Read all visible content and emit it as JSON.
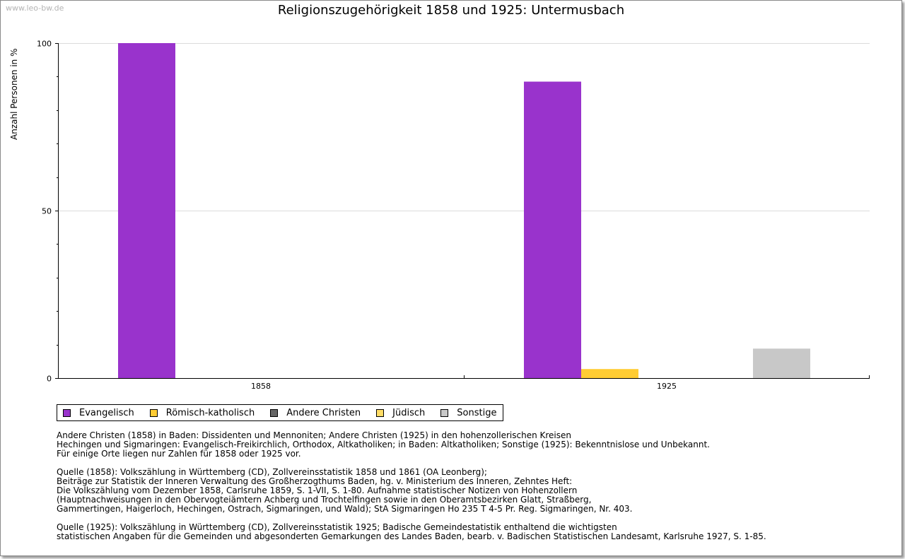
{
  "watermark": "www.leo-bw.de",
  "chart_data": {
    "type": "bar",
    "title": "Religionszugehörigkeit 1858 und 1925: Untermusbach",
    "xlabel": "",
    "ylabel": "Anzahl Personen in %",
    "ylim": [
      0,
      100
    ],
    "yticks": [
      0,
      50,
      100
    ],
    "grid": true,
    "categories": [
      "1858",
      "1925"
    ],
    "series": [
      {
        "name": "Evangelisch",
        "color": "#9933cc",
        "values": [
          100,
          88.5
        ]
      },
      {
        "name": "Römisch-katholisch",
        "color": "#ffcc33",
        "values": [
          0,
          2.7
        ]
      },
      {
        "name": "Andere Christen",
        "color": "#666666",
        "values": [
          0,
          0
        ]
      },
      {
        "name": "Jüdisch",
        "color": "#ffdd66",
        "values": [
          0,
          0
        ]
      },
      {
        "name": "Sonstige",
        "color": "#c8c8c8",
        "values": [
          0,
          8.8
        ]
      }
    ]
  },
  "notes": [
    "Andere Christen (1858) in Baden: Dissidenten und Mennoniten; Andere Christen (1925) in den hohenzollerischen Kreisen\nHechingen und Sigmaringen: Evangelisch-Freikirchlich, Orthodox, Altkatholiken; in Baden: Altkatholiken; Sonstige (1925): Bekenntnislose und Unbekannt.\nFür einige Orte liegen nur Zahlen für 1858 oder 1925 vor.",
    "Quelle (1858): Volkszählung in Württemberg (CD), Zollvereinsstatistik 1858 und 1861 (OA Leonberg);\nBeiträge zur Statistik der Inneren Verwaltung des Großherzogthums Baden, hg. v. Ministerium des Inneren, Zehntes Heft:\nDie Volkszählung vom Dezember 1858, Carlsruhe 1859, S. 1-VII, S. 1-80. Aufnahme statistischer Notizen von Hohenzollern\n(Hauptnachweisungen in den Obervogteiämtern Achberg und Trochtelfingen sowie in den Oberamtsbezirken Glatt, Straßberg,\nGammertingen, Haigerloch, Hechingen, Ostrach, Sigmaringen, und Wald); StA Sigmaringen Ho 235 T 4-5 Pr. Reg. Sigmaringen, Nr. 403.",
    "Quelle (1925): Volkszählung in Württemberg (CD), Zollvereinsstatistik 1925; Badische Gemeindestatistik enthaltend die wichtigsten\nstatistischen Angaben für die Gemeinden und abgesonderten Gemarkungen des Landes Baden, bearb. v. Badischen Statistischen Landesamt, Karlsruhe 1927, S. 1-85."
  ]
}
